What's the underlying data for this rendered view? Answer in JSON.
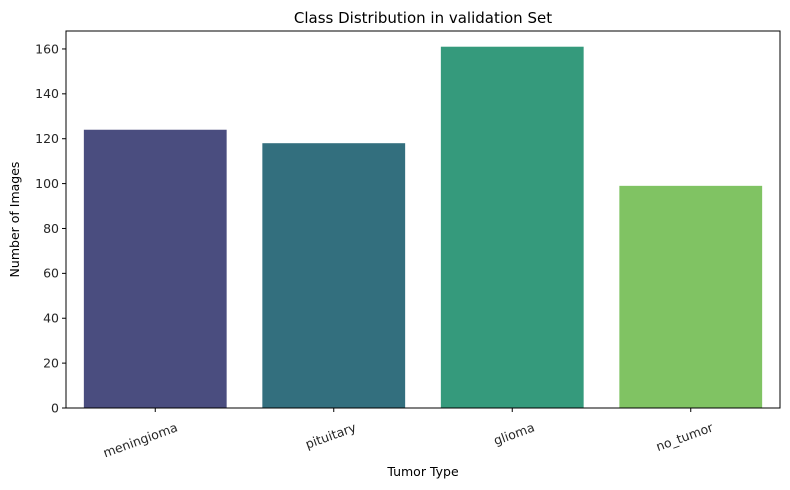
{
  "chart_data": {
    "type": "bar",
    "title": "Class Distribution in validation Set",
    "xlabel": "Tumor Type",
    "ylabel": "Number of Images",
    "categories": [
      "meningioma",
      "pituitary",
      "glioma",
      "no_tumor"
    ],
    "values": [
      124,
      118,
      161,
      99
    ],
    "colors": [
      "#4a4d7f",
      "#336f7e",
      "#359a7c",
      "#80c363"
    ],
    "ylim": [
      0,
      168
    ],
    "yticks": [
      0,
      20,
      40,
      60,
      80,
      100,
      120,
      140,
      160
    ],
    "grid": false,
    "legend": "none"
  }
}
